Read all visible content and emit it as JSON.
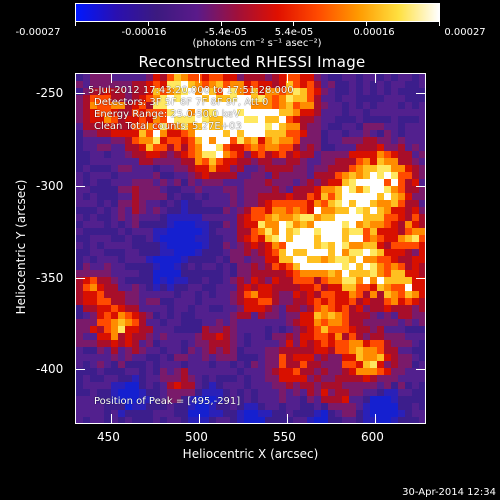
{
  "colorbar": {
    "tick_labels": [
      "-0.00027",
      "-0.00016",
      "-5.4e-05",
      "5.4e-05",
      "0.00016",
      "0.00027"
    ],
    "unit_label": "(photons cm⁻² s⁻¹ asec⁻²)",
    "colormap_stops": [
      "#0018ff",
      "#2a10b0",
      "#3c1a80",
      "#5a1a8a",
      "#a0103a",
      "#e01000",
      "#ff4a00",
      "#ff9a00",
      "#ffe040",
      "#ffffff"
    ]
  },
  "title": "Reconstructed RHESSI Image",
  "overlay": {
    "line1": "5-Jul-2012 17:43:20.000 to 17:51:28.000",
    "line2": "Detectors: 3F 5F 6F 7F 8F 9F, Att 0",
    "line3": "Energy Range: 25.0-50.0 keV",
    "line4": "Clean     Total counts: 5.27E+03",
    "peak": "Position of Peak = [495,-291]"
  },
  "axes": {
    "xlabel": "Heliocentric X (arcsec)",
    "ylabel": "Heliocentric Y (arcsec)",
    "xticks": [
      "450",
      "500",
      "550",
      "600"
    ],
    "yticks": [
      "-250",
      "-300",
      "-350",
      "-400"
    ]
  },
  "footer": {
    "date": "30-Apr-2014 12:34"
  }
}
